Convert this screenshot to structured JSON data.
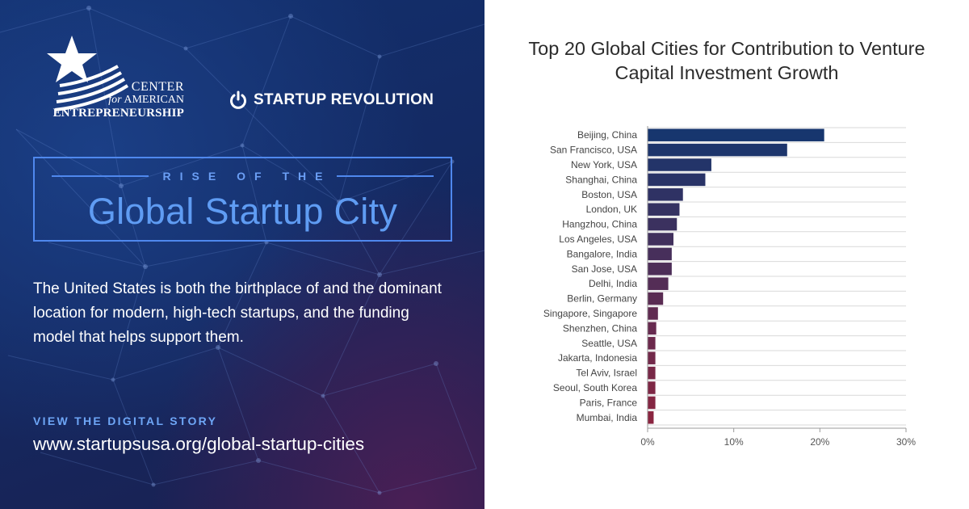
{
  "promo": {
    "logo_center": {
      "line1": "CENTER",
      "line2_for": "for",
      "line2_american": "AMERICAN",
      "line3": "ENTREPRENEURSHIP"
    },
    "logo_startup": "STARTUP REVOLUTION",
    "series_label": "RISE OF THE",
    "title": "Global Startup City",
    "intro": "The United States is both the birthplace of and the dominant location for modern, high-tech startups, and the funding model that helps support them.",
    "cta_label": "VIEW THE DIGITAL STORY",
    "cta_url": "www.startupsusa.org/global-startup-cities"
  },
  "colors": {
    "navy": "#12306e",
    "title_blue": "#5f9cf3",
    "bar_top": "#17366e",
    "bar_bottom": "#8a2540"
  },
  "chart_data": {
    "type": "bar",
    "orientation": "horizontal",
    "title": "Top 20 Global Cities for Contribution to Venture Capital Investment Growth",
    "xlabel": "",
    "ylabel": "",
    "xlim": [
      0,
      30
    ],
    "x_ticks": [
      "0%",
      "10%",
      "20%",
      "30%"
    ],
    "x_tick_values": [
      0,
      10,
      20,
      30
    ],
    "grid": "horizontal-rows",
    "categories": [
      "Beijing, China",
      "San Francisco, USA",
      "New York, USA",
      "Shanghai, China",
      "Boston, USA",
      "London, UK",
      "Hangzhou, China",
      "Los Angeles, USA",
      "Bangalore, India",
      "San Jose, USA",
      "Delhi, India",
      "Berlin, Germany",
      "Singapore, Singapore",
      "Shenzhen, China",
      "Seattle, USA",
      "Jakarta, Indonesia",
      "Tel Aviv, Israel",
      "Seoul, South Korea",
      "Paris, France",
      "Mumbai, India"
    ],
    "values": [
      20.5,
      16.2,
      7.4,
      6.7,
      4.1,
      3.7,
      3.4,
      3.0,
      2.8,
      2.8,
      2.4,
      1.8,
      1.2,
      1.0,
      0.9,
      0.9,
      0.9,
      0.9,
      0.9,
      0.7
    ]
  }
}
